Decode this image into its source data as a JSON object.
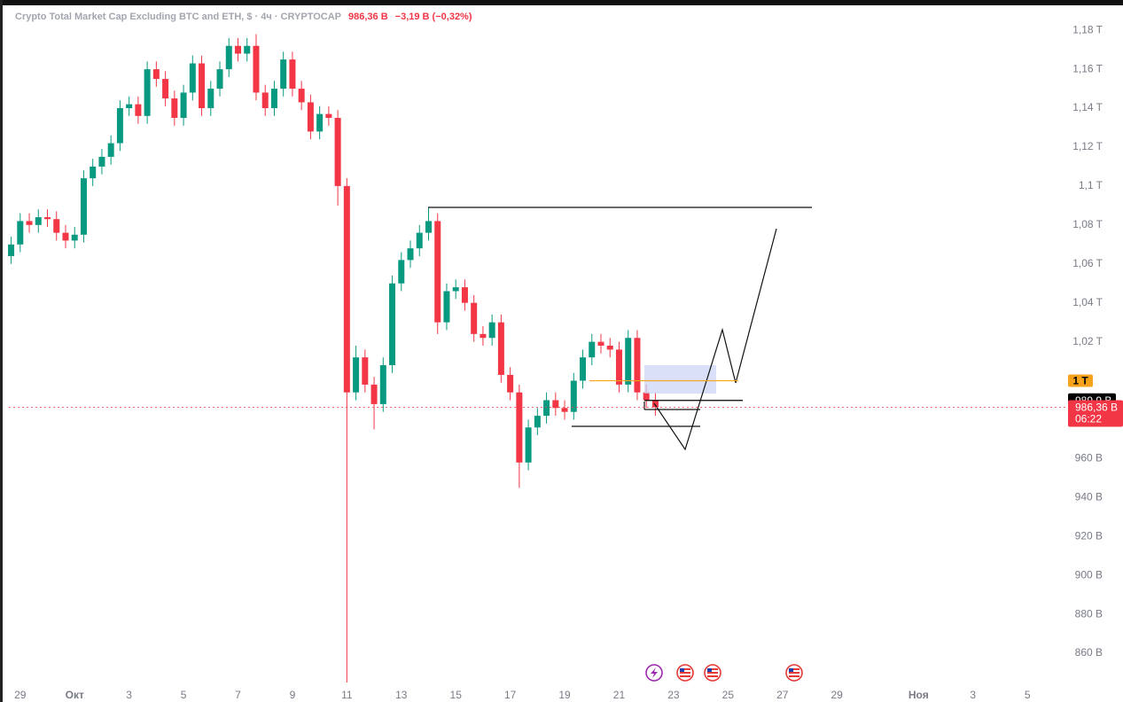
{
  "chart_data": {
    "type": "candlestick",
    "title": "Crypto Total Market Cap Excluding BTC and ETH, $ · 4ч · CRYPTOCAP",
    "last_price_label": "986,36 B",
    "change_label": "−3,19 B (−0,32%)",
    "up_color": "#089981",
    "down_color": "#f23645",
    "x": [
      -8,
      0,
      8,
      16,
      24,
      32,
      40,
      48,
      56,
      64,
      72,
      80,
      88,
      96,
      104,
      112,
      120,
      128,
      136,
      144,
      152,
      160,
      168,
      176,
      184,
      192,
      200,
      208,
      216,
      224,
      232,
      240,
      248,
      256,
      264,
      272,
      280,
      288,
      296,
      304,
      312,
      320,
      328,
      336,
      344,
      352,
      360,
      368,
      376,
      384,
      392,
      400,
      408,
      416,
      424,
      432,
      440,
      448,
      456,
      464,
      472,
      480,
      488,
      496,
      504,
      512,
      520,
      528,
      536,
      544,
      552,
      560
    ],
    "open": [
      1064,
      1070,
      1082,
      1080,
      1084,
      1083,
      1076,
      1072,
      1075,
      1104,
      1110,
      1115,
      1122,
      1140,
      1142,
      1136,
      1160,
      1155,
      1145,
      1135,
      1148,
      1163,
      1140,
      1150,
      1160,
      1172,
      1168,
      1172,
      1148,
      1140,
      1150,
      1165,
      1150,
      1143,
      1128,
      1137,
      1135,
      1100,
      994,
      1012,
      998,
      988,
      1008,
      1050,
      1062,
      1068,
      1076,
      1082,
      1030,
      1046,
      1048,
      1040,
      1024,
      1022,
      1030,
      1003,
      994,
      958,
      976,
      982,
      990,
      986,
      984,
      1000,
      1012,
      1020,
      1018,
      1016,
      998,
      1022,
      994,
      990
    ],
    "high": [
      1074,
      1086,
      1086,
      1088,
      1088,
      1087,
      1080,
      1079,
      1108,
      1114,
      1119,
      1126,
      1144,
      1146,
      1146,
      1164,
      1164,
      1159,
      1149,
      1152,
      1167,
      1167,
      1154,
      1164,
      1176,
      1176,
      1176,
      1178,
      1152,
      1154,
      1169,
      1169,
      1154,
      1147,
      1141,
      1141,
      1139,
      1104,
      1018,
      1016,
      1002,
      1012,
      1054,
      1066,
      1072,
      1080,
      1089,
      1086,
      1050,
      1052,
      1052,
      1044,
      1028,
      1034,
      1034,
      1007,
      998,
      980,
      986,
      994,
      994,
      990,
      1004,
      1016,
      1024,
      1024,
      1022,
      1020,
      1026,
      1026,
      998,
      994
    ],
    "low": [
      1060,
      1066,
      1076,
      1076,
      1079,
      1072,
      1068,
      1068,
      1071,
      1100,
      1106,
      1111,
      1118,
      1136,
      1132,
      1132,
      1151,
      1141,
      1131,
      1131,
      1144,
      1136,
      1136,
      1146,
      1156,
      1164,
      1164,
      1144,
      1136,
      1136,
      1146,
      1146,
      1139,
      1124,
      1124,
      1131,
      1090,
      845,
      990,
      994,
      975,
      984,
      1004,
      1046,
      1058,
      1064,
      1072,
      1024,
      1026,
      1042,
      1036,
      1020,
      1018,
      1018,
      999,
      990,
      945,
      954,
      972,
      978,
      982,
      980,
      980,
      996,
      1008,
      1014,
      1012,
      994,
      994,
      990,
      986,
      982
    ],
    "close": [
      1070,
      1082,
      1080,
      1084,
      1083,
      1076,
      1072,
      1075,
      1104,
      1110,
      1115,
      1122,
      1140,
      1142,
      1136,
      1160,
      1155,
      1145,
      1135,
      1148,
      1163,
      1140,
      1150,
      1160,
      1172,
      1168,
      1172,
      1148,
      1140,
      1150,
      1165,
      1150,
      1143,
      1128,
      1137,
      1135,
      1100,
      994,
      1012,
      998,
      988,
      1008,
      1050,
      1062,
      1068,
      1076,
      1082,
      1030,
      1046,
      1048,
      1040,
      1024,
      1022,
      1030,
      1003,
      994,
      958,
      976,
      982,
      990,
      986,
      984,
      1000,
      1012,
      1020,
      1018,
      1016,
      998,
      1022,
      994,
      990,
      986.36
    ],
    "xlim": [
      -10,
      916
    ],
    "ylim": [
      845,
      1191
    ],
    "xticks": [
      {
        "value": 0,
        "label": "29"
      },
      {
        "value": 48,
        "label": "Окт"
      },
      {
        "value": 96,
        "label": "3"
      },
      {
        "value": 144,
        "label": "5"
      },
      {
        "value": 192,
        "label": "7"
      },
      {
        "value": 240,
        "label": "9"
      },
      {
        "value": 288,
        "label": "11"
      },
      {
        "value": 336,
        "label": "13"
      },
      {
        "value": 384,
        "label": "15"
      },
      {
        "value": 432,
        "label": "17"
      },
      {
        "value": 480,
        "label": "19"
      },
      {
        "value": 528,
        "label": "21"
      },
      {
        "value": 576,
        "label": "23"
      },
      {
        "value": 624,
        "label": "25"
      },
      {
        "value": 672,
        "label": "27"
      },
      {
        "value": 720,
        "label": "29"
      },
      {
        "value": 792,
        "label": "Ноя"
      },
      {
        "value": 840,
        "label": "3"
      },
      {
        "value": 888,
        "label": "5"
      }
    ],
    "yticks": [
      {
        "value": 860,
        "label": "860 B"
      },
      {
        "value": 880,
        "label": "880 B"
      },
      {
        "value": 900,
        "label": "900 B"
      },
      {
        "value": 920,
        "label": "920 B"
      },
      {
        "value": 940,
        "label": "940 B"
      },
      {
        "value": 960,
        "label": "960 B"
      },
      {
        "value": 1020,
        "label": "1,02 T"
      },
      {
        "value": 1040,
        "label": "1,04 T"
      },
      {
        "value": 1060,
        "label": "1,06 T"
      },
      {
        "value": 1080,
        "label": "1,08 T"
      },
      {
        "value": 1100,
        "label": "1,1 T"
      },
      {
        "value": 1120,
        "label": "1,12 T"
      },
      {
        "value": 1140,
        "label": "1,14 T"
      },
      {
        "value": 1160,
        "label": "1,16 T"
      },
      {
        "value": 1180,
        "label": "1,18 T"
      }
    ],
    "price_labels": [
      {
        "value": 1000,
        "label": "1 T",
        "color": "#f7a21b"
      },
      {
        "value": 989.9,
        "label": "989,9 B",
        "color": "#000000"
      },
      {
        "value": 986.36,
        "label": "986,36 B",
        "countdown": "06:22",
        "color": "#f23645"
      }
    ]
  }
}
